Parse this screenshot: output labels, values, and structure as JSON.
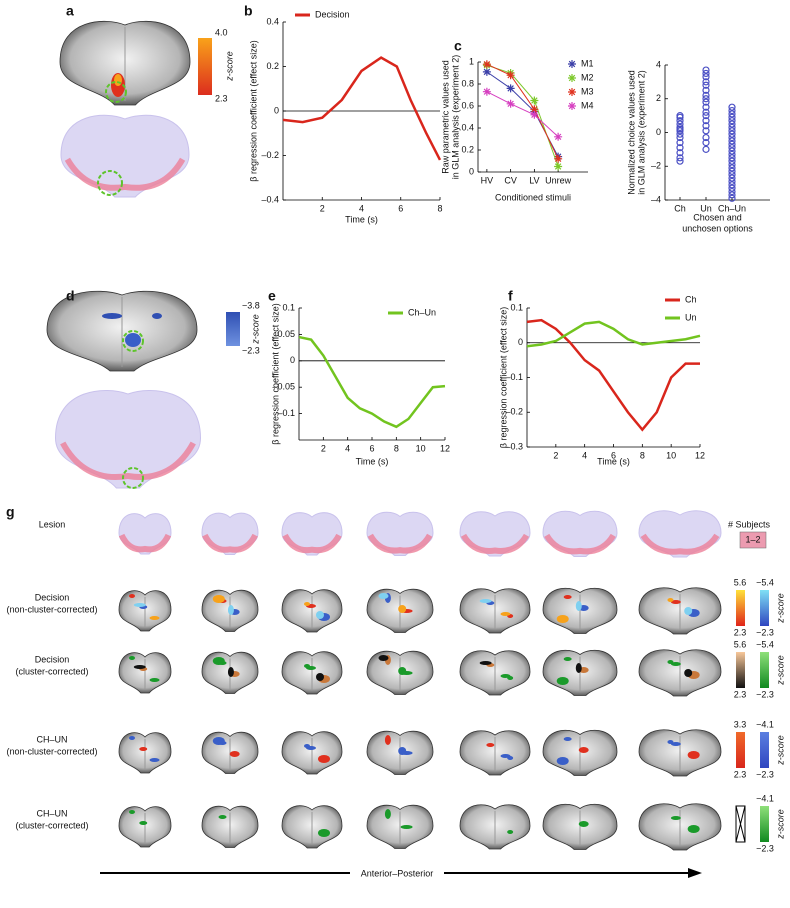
{
  "panel_labels": [
    "a",
    "b",
    "c",
    "d",
    "e",
    "f",
    "g"
  ],
  "panel_a": {
    "colorbar_max": "4.0",
    "colorbar_min": "2.3",
    "colorbar_label": "z-score"
  },
  "panel_d": {
    "colorbar_max": "−3.8",
    "colorbar_min": "−2.3",
    "colorbar_label": "z-score"
  },
  "panel_g": {
    "row_labels": [
      [
        "Lesion"
      ],
      [
        "Decision",
        "(non-cluster-corrected)"
      ],
      [
        "Decision",
        "(cluster-corrected)"
      ],
      [
        "CH–UN",
        "(non-cluster-corrected)"
      ],
      [
        "CH–UN",
        "(cluster-corrected)"
      ]
    ],
    "subjects_title": "# Subjects",
    "subjects_range": "1–2",
    "colorbars": [
      {
        "left_max": "5.6",
        "left_min": "2.3",
        "right_max": "−5.4",
        "right_min": "−2.3",
        "label": "z-score"
      },
      {
        "left_max": "5.6",
        "left_min": "2.3",
        "right_max": "−5.4",
        "right_min": "−2.3",
        "label": "z-score"
      },
      {
        "left_max": "3.3",
        "left_min": "2.3",
        "right_max": "−4.1",
        "right_min": "−2.3",
        "label": "z-score"
      },
      {
        "right_max": "−4.1",
        "right_min": "−2.3",
        "label": "z-score"
      }
    ],
    "axis_label": "Anterior–Posterior"
  },
  "chart_data": [
    {
      "type": "line",
      "xlabel": "Time (s)",
      "ylabel": "β regression coefficient (effect size)",
      "x": [
        0,
        1,
        2,
        3,
        4,
        5,
        5.8,
        6.5,
        7.3,
        8
      ],
      "series": [
        {
          "name": "Decision",
          "color": "#d9261c",
          "values": [
            -0.04,
            -0.05,
            -0.03,
            0.05,
            0.18,
            0.24,
            0.2,
            0.05,
            -0.1,
            -0.22
          ]
        }
      ],
      "xlim": [
        0,
        8
      ],
      "xticks": [
        2,
        4,
        6,
        8
      ],
      "ylim": [
        -0.4,
        0.4
      ],
      "yticks": [
        {
          "value": -0.4,
          "label": "–0.4"
        },
        {
          "value": -0.2,
          "label": "–0.2"
        },
        0,
        0.2,
        0.4
      ],
      "hline": 0
    },
    {
      "type": "line",
      "marker": "star",
      "xlabel": "Conditioned stimuli",
      "ylabel": [
        "Raw parametric values used",
        "in GLM analysis (experiment 2)"
      ],
      "categories": [
        "HV",
        "CV",
        "LV",
        "Unrew"
      ],
      "series": [
        {
          "name": "M1",
          "color": "#3b3fa8",
          "values": [
            0.91,
            0.76,
            0.55,
            0.14
          ]
        },
        {
          "name": "M2",
          "color": "#7cc82a",
          "values": [
            0.97,
            0.9,
            0.65,
            0.05
          ]
        },
        {
          "name": "M3",
          "color": "#e0321f",
          "values": [
            0.98,
            0.88,
            0.57,
            0.12
          ]
        },
        {
          "name": "M4",
          "color": "#d63fc0",
          "values": [
            0.73,
            0.62,
            0.52,
            0.32
          ]
        }
      ],
      "ylim": [
        0,
        1
      ],
      "yticks": [
        0,
        0.2,
        0.4,
        0.6,
        0.8,
        1
      ]
    },
    {
      "type": "strip",
      "xlabel": [
        "Chosen and",
        "unchosen options"
      ],
      "ylabel": [
        "Normalized choice values used",
        "in GLM analysis (experiment 2)"
      ],
      "categories": [
        "Ch",
        "Un",
        "Ch–Un"
      ],
      "color": "#4a4fc4",
      "values": [
        [
          1.0,
          0.9,
          0.7,
          0.5,
          0.3,
          0.2,
          0.1,
          -0.1,
          -0.3,
          -0.6,
          -0.9,
          -1.2,
          -1.5,
          -1.7
        ],
        [
          3.7,
          3.5,
          3.3,
          3.0,
          2.8,
          2.5,
          2.2,
          2.0,
          1.8,
          1.5,
          1.2,
          1.0,
          0.7,
          0.4,
          0.1,
          -0.3,
          -0.6,
          -1.0
        ],
        [
          1.5,
          1.3,
          1.1,
          0.9,
          0.7,
          0.5,
          0.3,
          0.1,
          -0.1,
          -0.3,
          -0.5,
          -0.7,
          -0.9,
          -1.1,
          -1.3,
          -1.5,
          -1.7,
          -1.9,
          -2.1,
          -2.3,
          -2.5,
          -2.7,
          -2.9,
          -3.1,
          -3.3,
          -3.5,
          -3.7,
          -3.9
        ]
      ],
      "ylim": [
        -4,
        4
      ],
      "yticks": [
        {
          "value": -4,
          "label": "–4"
        },
        {
          "value": -2,
          "label": "–2"
        },
        0,
        2,
        4
      ]
    },
    {
      "type": "line",
      "xlabel": "Time (s)",
      "ylabel": "β regression coefficient (effect size)",
      "x": [
        0,
        1,
        2,
        3,
        4,
        5,
        6,
        7,
        8,
        9,
        10,
        11,
        12
      ],
      "series": [
        {
          "name": "Ch–Un",
          "color": "#72c41f",
          "values": [
            0.045,
            0.04,
            0.01,
            -0.03,
            -0.07,
            -0.09,
            -0.1,
            -0.115,
            -0.125,
            -0.11,
            -0.08,
            -0.05,
            -0.048
          ]
        }
      ],
      "xlim": [
        0,
        12
      ],
      "xticks": [
        2,
        4,
        6,
        8,
        10,
        12
      ],
      "ylim": [
        -0.15,
        0.1
      ],
      "yticks": [
        {
          "value": -0.1,
          "label": "–0.1"
        },
        {
          "value": -0.05,
          "label": "–0.05"
        },
        0,
        0.05,
        0.1
      ],
      "hline": 0
    },
    {
      "type": "line",
      "xlabel": "Time (s)",
      "ylabel": "β regression coefficient (effect size)",
      "x": [
        0,
        1,
        2,
        3,
        4,
        5,
        6,
        7,
        8,
        9,
        10,
        11,
        12
      ],
      "series": [
        {
          "name": "Ch",
          "color": "#d9261c",
          "values": [
            0.06,
            0.065,
            0.04,
            0,
            -0.05,
            -0.08,
            -0.14,
            -0.2,
            -0.25,
            -0.2,
            -0.1,
            -0.06,
            -0.06
          ]
        },
        {
          "name": "Un",
          "color": "#72c41f",
          "values": [
            -0.01,
            -0.005,
            0.005,
            0.03,
            0.055,
            0.06,
            0.04,
            0.01,
            -0.005,
            0,
            0.005,
            0.01,
            0.02
          ]
        }
      ],
      "xlim": [
        0,
        12
      ],
      "xticks": [
        2,
        4,
        6,
        8,
        10,
        12
      ],
      "ylim": [
        -0.3,
        0.1
      ],
      "yticks": [
        {
          "value": -0.3,
          "label": "–0.3"
        },
        {
          "value": -0.2,
          "label": "–0.2"
        },
        {
          "value": -0.1,
          "label": "–0.1"
        },
        0,
        0.1
      ],
      "hline": 0
    }
  ]
}
